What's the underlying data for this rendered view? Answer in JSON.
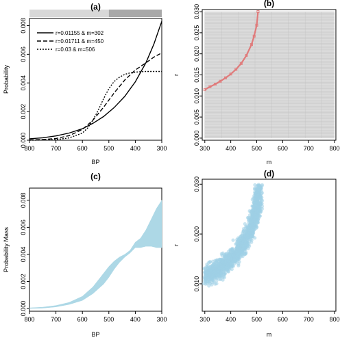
{
  "colors": {
    "band": "#add8e6",
    "pixel_cells": "#dcdcdc",
    "red_path": "#e07a7a",
    "scatter": "#9fd0e6",
    "bar_light": "#d8d8d8",
    "bar_dark": "#a8a8a8"
  },
  "chart_data": [
    {
      "id": "a",
      "type": "line",
      "title": "(a)",
      "xlabel": "BP",
      "ylabel": "Probability",
      "xlim": [
        800,
        300
      ],
      "ylim": [
        0,
        0.0085
      ],
      "xticks": [
        "800",
        "700",
        "600",
        "500",
        "400",
        "300"
      ],
      "yticks": [
        "0.000",
        "0.002",
        "0.004",
        "0.006",
        "0.008"
      ],
      "bar": [
        {
          "from": 800,
          "to": 500,
          "shade": "light"
        },
        {
          "from": 500,
          "to": 300,
          "shade": "dark"
        }
      ],
      "legend_position": "top-left",
      "series": [
        {
          "name": "r=0.01155 & m=302",
          "dash": "solid",
          "x": [
            800,
            750,
            700,
            650,
            600,
            560,
            520,
            480,
            440,
            400,
            360,
            330,
            300
          ],
          "y": [
            0.0001,
            0.00017,
            0.0003,
            0.0005,
            0.0008,
            0.00118,
            0.00165,
            0.00228,
            0.00306,
            0.00408,
            0.0054,
            0.0067,
            0.0083
          ]
        },
        {
          "name": "r=0.01711 & m=450",
          "dash": "dash",
          "x": [
            800,
            750,
            700,
            650,
            600,
            560,
            520,
            480,
            440,
            400,
            360,
            330,
            300
          ],
          "y": [
            2e-05,
            5e-05,
            0.00012,
            0.00032,
            0.00075,
            0.0014,
            0.0023,
            0.0033,
            0.0042,
            0.0049,
            0.0054,
            0.0058,
            0.0061
          ]
        },
        {
          "name": "r=0.03 & m=506",
          "dash": "dot",
          "x": [
            800,
            750,
            700,
            650,
            600,
            580,
            560,
            540,
            520,
            500,
            480,
            460,
            440,
            420,
            400,
            380,
            360,
            340,
            300
          ],
          "y": [
            0,
            1e-05,
            4e-05,
            0.00016,
            0.0005,
            0.00085,
            0.0014,
            0.0021,
            0.0029,
            0.0036,
            0.0041,
            0.0044,
            0.0046,
            0.0047,
            0.00475,
            0.00478,
            0.0048,
            0.0048,
            0.0048
          ]
        }
      ]
    },
    {
      "id": "b",
      "type": "heatmap",
      "title": "(b)",
      "xlabel": "m",
      "ylabel": "r",
      "xlim": [
        290,
        805
      ],
      "ylim": [
        -0.0005,
        0.0305
      ],
      "xticks": [
        "300",
        "400",
        "500",
        "600",
        "700",
        "800"
      ],
      "yticks": [
        "0.000",
        "0.005",
        "0.010",
        "0.015",
        "0.020",
        "0.025",
        "0.030"
      ],
      "grid": true,
      "path": {
        "m": [
          300,
          320,
          340,
          360,
          380,
          400,
          420,
          440,
          460,
          480,
          490,
          500,
          505
        ],
        "r": [
          0.0115,
          0.0122,
          0.0128,
          0.0135,
          0.0143,
          0.0152,
          0.0163,
          0.0177,
          0.0196,
          0.0222,
          0.0242,
          0.0268,
          0.03
        ]
      }
    },
    {
      "id": "c",
      "type": "area",
      "title": "(c)",
      "xlabel": "BP",
      "ylabel": "Probability Mass",
      "xlim": [
        800,
        300
      ],
      "ylim": [
        -0.0002,
        0.0089
      ],
      "xticks": [
        "800",
        "700",
        "600",
        "500",
        "400",
        "300"
      ],
      "yticks": [
        "0.000",
        "0.002",
        "0.004",
        "0.006",
        "0.008"
      ],
      "x": [
        800,
        750,
        700,
        650,
        600,
        560,
        520,
        500,
        480,
        460,
        440,
        420,
        400,
        380,
        360,
        340,
        320,
        300
      ],
      "upper": [
        5e-05,
        0.0001,
        0.00022,
        0.00045,
        0.0009,
        0.0016,
        0.0026,
        0.0031,
        0.0035,
        0.0038,
        0.004,
        0.0043,
        0.0049,
        0.0052,
        0.0058,
        0.0066,
        0.0074,
        0.008
      ],
      "lower": [
        0,
        3e-05,
        0.00012,
        0.0003,
        0.0006,
        0.0011,
        0.0018,
        0.0023,
        0.0029,
        0.0034,
        0.0038,
        0.0041,
        0.0045,
        0.0045,
        0.0046,
        0.0046,
        0.0045,
        0.0045
      ]
    },
    {
      "id": "d",
      "type": "scatter",
      "title": "(d)",
      "xlabel": "m",
      "ylabel": "r",
      "xlim": [
        290,
        805
      ],
      "ylim": [
        0.0045,
        0.031
      ],
      "xticks": [
        "300",
        "400",
        "500",
        "600",
        "700",
        "800"
      ],
      "yticks": [
        "0.010",
        "0.020",
        "0.030"
      ],
      "center": {
        "m": [
          300,
          320,
          340,
          360,
          380,
          400,
          420,
          440,
          460,
          480,
          490,
          500,
          505,
          510
        ],
        "r": [
          0.0115,
          0.012,
          0.0126,
          0.0132,
          0.014,
          0.0149,
          0.016,
          0.0173,
          0.019,
          0.0213,
          0.023,
          0.0252,
          0.027,
          0.0293
        ]
      },
      "spread_r": 0.0013,
      "spread_m": 12
    }
  ]
}
